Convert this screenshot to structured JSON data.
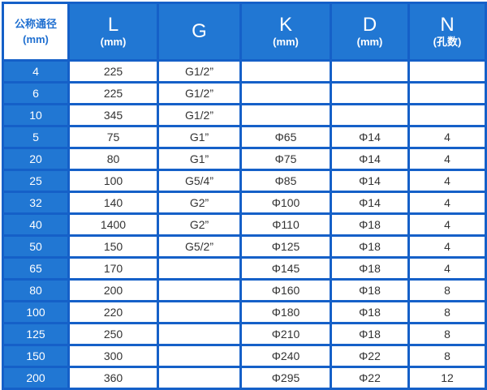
{
  "colors": {
    "header": "#2177d3",
    "border": "#1560c8",
    "corner_text": "#1f6fd0"
  },
  "header": {
    "corner": [
      "公称通径",
      "(mm)"
    ],
    "columns": [
      {
        "main": "L",
        "sub": "(mm)"
      },
      {
        "main": "G",
        "sub": ""
      },
      {
        "main": "K",
        "sub": "(mm)"
      },
      {
        "main": "D",
        "sub": "(mm)"
      },
      {
        "main": "N",
        "sub": "(孔数)"
      }
    ]
  },
  "rows": [
    [
      "4",
      "225",
      "G1/2”",
      "",
      "",
      ""
    ],
    [
      "6",
      "225",
      "G1/2”",
      "",
      "",
      ""
    ],
    [
      "10",
      "345",
      "G1/2”",
      "",
      "",
      ""
    ],
    [
      "5",
      "75",
      "G1”",
      "Φ65",
      "Φ14",
      "4"
    ],
    [
      "20",
      "80",
      "G1”",
      "Φ75",
      "Φ14",
      "4"
    ],
    [
      "25",
      "100",
      "G5/4”",
      "Φ85",
      "Φ14",
      "4"
    ],
    [
      "32",
      "140",
      "G2”",
      "Φ100",
      "Φ14",
      "4"
    ],
    [
      "40",
      "1400",
      "G2”",
      "Φ110",
      "Φ18",
      "4"
    ],
    [
      "50",
      "150",
      "G5/2”",
      "Φ125",
      "Φ18",
      "4"
    ],
    [
      "65",
      "170",
      "",
      "Φ145",
      "Φ18",
      "4"
    ],
    [
      "80",
      "200",
      "",
      "Φ160",
      "Φ18",
      "8"
    ],
    [
      "100",
      "220",
      "",
      "Φ180",
      "Φ18",
      "8"
    ],
    [
      "125",
      "250",
      "",
      "Φ210",
      "Φ18",
      "8"
    ],
    [
      "150",
      "300",
      "",
      "Φ240",
      "Φ22",
      "8"
    ],
    [
      "200",
      "360",
      "",
      "Φ295",
      "Φ22",
      "12"
    ]
  ]
}
